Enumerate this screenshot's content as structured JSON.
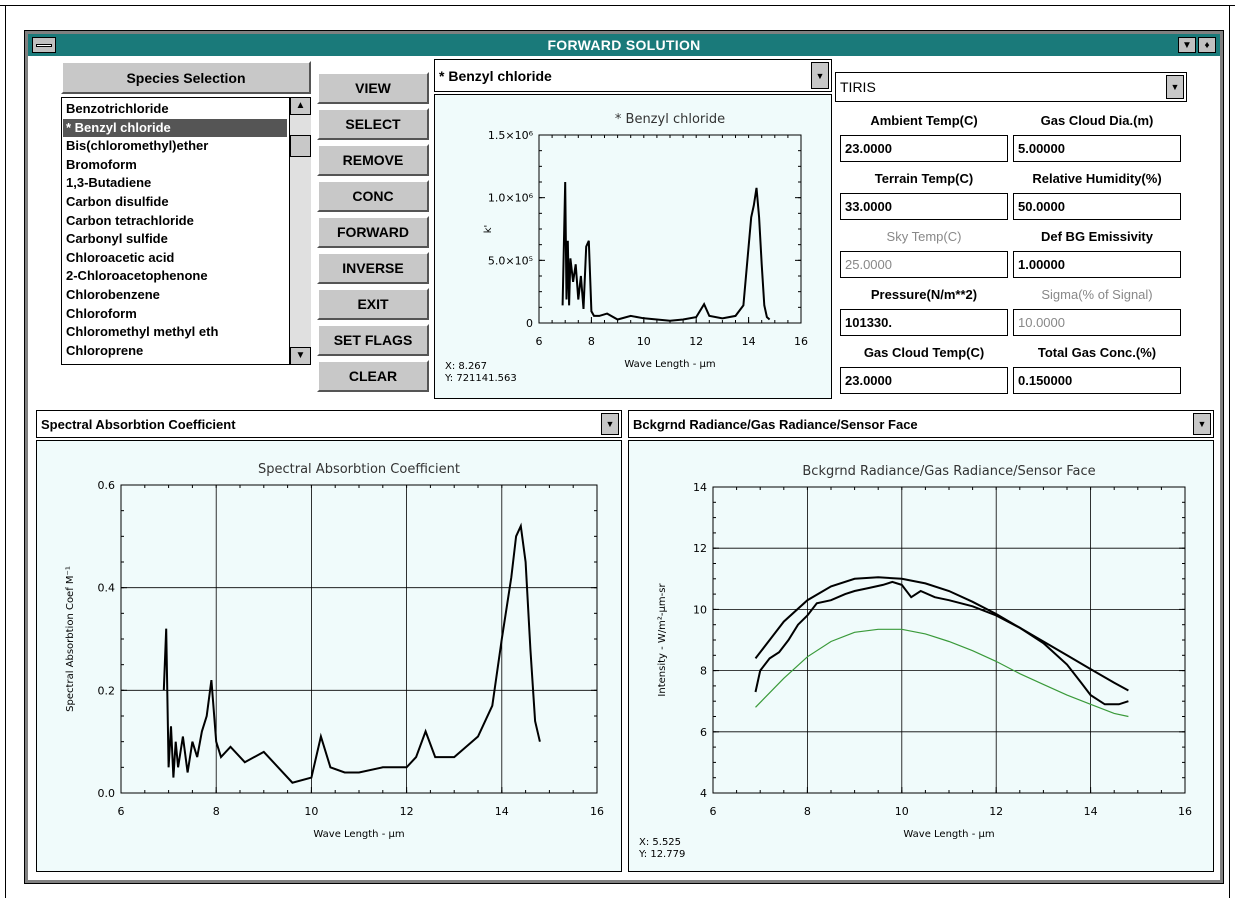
{
  "window": {
    "title": "FORWARD SOLUTION",
    "menu_arrows": "▼ ◆"
  },
  "species": {
    "header": "Species Selection",
    "items": [
      "Benzotrichloride",
      "* Benzyl chloride",
      "Bis(chloromethyl)ether",
      "Bromoform",
      "1,3-Butadiene",
      "Carbon disulfide",
      "Carbon tetrachloride",
      "Carbonyl sulfide",
      "Chloroacetic acid",
      "2-Chloroacetophenone",
      "Chlorobenzene",
      "Chloroform",
      "Chloromethyl methyl eth",
      "Chloroprene"
    ],
    "selected_index": 1
  },
  "buttons": [
    "VIEW",
    "SELECT",
    "REMOVE",
    "CONC",
    "FORWARD",
    "INVERSE",
    "EXIT",
    "SET FLAGS",
    "CLEAR"
  ],
  "preview": {
    "dropdown": "* Benzyl chloride",
    "title": "* Benzyl chloride",
    "ylabel": "k'",
    "xlabel": "Wave Length - μm",
    "cursor_x": "X:       8.267",
    "cursor_y": "Y: 721141.563",
    "yticks": [
      "1.5×10⁶",
      "1.0×10⁶",
      "5.0×10⁵",
      "0"
    ],
    "xticks": [
      "6",
      "8",
      "10",
      "12",
      "14",
      "16"
    ]
  },
  "sensor": {
    "dropdown": "TIRIS",
    "params": [
      {
        "label": "Ambient Temp(C)",
        "value": "23.0000",
        "enabled": true
      },
      {
        "label": "Gas Cloud Dia.(m)",
        "value": "5.00000",
        "enabled": true
      },
      {
        "label": "Terrain Temp(C)",
        "value": "33.0000",
        "enabled": true
      },
      {
        "label": "Relative Humidity(%)",
        "value": "50.0000",
        "enabled": true
      },
      {
        "label": "Sky Temp(C)",
        "value": "25.0000",
        "enabled": false
      },
      {
        "label": "Def BG Emissivity",
        "value": "1.00000",
        "enabled": true
      },
      {
        "label": "Pressure(N/m**2)",
        "value": "101330.",
        "enabled": true
      },
      {
        "label": "Sigma(% of Signal)",
        "value": "10.0000",
        "enabled": false
      },
      {
        "label": "Gas Cloud Temp(C)",
        "value": "23.0000",
        "enabled": true
      },
      {
        "label": "Total Gas Conc.(%)",
        "value": "0.150000",
        "enabled": true
      }
    ]
  },
  "absorption": {
    "dropdown": "Spectral Absorbtion Coefficient",
    "title": "Spectral Absorbtion Coefficient",
    "ylabel": "Spectral Absorbtion Coef M⁻¹",
    "xlabel": "Wave Length - μm",
    "yticks": [
      "0.6",
      "0.4",
      "0.2",
      "0.0"
    ],
    "xticks": [
      "6",
      "8",
      "10",
      "12",
      "14",
      "16"
    ]
  },
  "radiance": {
    "dropdown": "Bckgrnd Radiance/Gas Radiance/Sensor Face",
    "title": "Bckgrnd Radiance/Gas Radiance/Sensor Face",
    "ylabel": "Intensity - W/m²-μm-sr",
    "xlabel": "Wave Length - μm",
    "cursor_x": "X:       5.525",
    "cursor_y": "Y:      12.779",
    "yticks": [
      "14",
      "12",
      "10",
      "8",
      "6",
      "4"
    ],
    "xticks": [
      "6",
      "8",
      "10",
      "12",
      "14",
      "16"
    ]
  },
  "chart_data": [
    {
      "type": "line",
      "title": "* Benzyl chloride",
      "xlabel": "Wave Length - μm",
      "ylabel": "k'",
      "xlim": [
        6,
        16
      ],
      "ylim": [
        0,
        1600000
      ],
      "grid": false,
      "series": [
        {
          "x": [
            6.9,
            7.0,
            7.05,
            7.1,
            7.15,
            7.2,
            7.3,
            7.4,
            7.5,
            7.6,
            7.7,
            7.8,
            7.9,
            8.0,
            8.1,
            8.3,
            8.6,
            9.0,
            9.5,
            10.0,
            10.5,
            11.0,
            11.5,
            12.0,
            12.3,
            12.5,
            13.0,
            13.5,
            13.8,
            14.0,
            14.1,
            14.2,
            14.3,
            14.4,
            14.5,
            14.6,
            14.7,
            14.8
          ],
          "values": [
            150000,
            1200000,
            200000,
            700000,
            150000,
            550000,
            350000,
            500000,
            200000,
            400000,
            120000,
            650000,
            700000,
            100000,
            60000,
            60000,
            80000,
            30000,
            60000,
            40000,
            30000,
            20000,
            30000,
            50000,
            160000,
            60000,
            40000,
            60000,
            150000,
            650000,
            900000,
            1000000,
            1150000,
            900000,
            500000,
            150000,
            50000,
            30000
          ]
        }
      ]
    },
    {
      "type": "line",
      "title": "Spectral Absorbtion Coefficient",
      "xlabel": "Wave Length - μm",
      "ylabel": "Spectral Absorbtion Coef M⁻¹",
      "xlim": [
        6,
        16
      ],
      "ylim": [
        0,
        0.6
      ],
      "grid": true,
      "series": [
        {
          "x": [
            6.9,
            6.95,
            7.0,
            7.05,
            7.1,
            7.15,
            7.2,
            7.3,
            7.4,
            7.5,
            7.6,
            7.7,
            7.8,
            7.9,
            8.0,
            8.1,
            8.3,
            8.6,
            9.0,
            9.3,
            9.6,
            10.0,
            10.2,
            10.4,
            10.7,
            11.0,
            11.5,
            12.0,
            12.2,
            12.4,
            12.6,
            13.0,
            13.5,
            13.8,
            14.0,
            14.2,
            14.3,
            14.4,
            14.5,
            14.6,
            14.7,
            14.8
          ],
          "values": [
            0.2,
            0.32,
            0.05,
            0.13,
            0.03,
            0.1,
            0.05,
            0.11,
            0.04,
            0.1,
            0.07,
            0.12,
            0.15,
            0.22,
            0.1,
            0.07,
            0.09,
            0.06,
            0.08,
            0.05,
            0.02,
            0.03,
            0.11,
            0.05,
            0.04,
            0.04,
            0.05,
            0.05,
            0.07,
            0.12,
            0.07,
            0.07,
            0.11,
            0.17,
            0.3,
            0.42,
            0.5,
            0.52,
            0.45,
            0.28,
            0.14,
            0.1
          ]
        }
      ]
    },
    {
      "type": "line",
      "title": "Bckgrnd Radiance/Gas Radiance/Sensor Face",
      "xlabel": "Wave Length - μm",
      "ylabel": "Intensity - W/m²-μm-sr",
      "xlim": [
        6,
        16
      ],
      "ylim": [
        4,
        14
      ],
      "grid": true,
      "series": [
        {
          "color": "#000000",
          "x": [
            6.9,
            7.5,
            8.0,
            8.5,
            9.0,
            9.5,
            10.0,
            10.5,
            11.0,
            11.5,
            12.0,
            12.5,
            13.0,
            13.5,
            14.0,
            14.5,
            14.8
          ],
          "values": [
            8.4,
            9.6,
            10.3,
            10.75,
            11.0,
            11.05,
            11.0,
            10.85,
            10.6,
            10.25,
            9.85,
            9.4,
            8.95,
            8.5,
            8.05,
            7.6,
            7.35
          ]
        },
        {
          "color": "#000000",
          "x": [
            6.9,
            7.0,
            7.2,
            7.4,
            7.6,
            7.8,
            8.0,
            8.2,
            8.5,
            8.8,
            9.0,
            9.3,
            9.6,
            9.8,
            10.0,
            10.2,
            10.4,
            10.7,
            11.0,
            11.5,
            12.0,
            12.5,
            13.0,
            13.5,
            13.8,
            14.0,
            14.3,
            14.6,
            14.8
          ],
          "values": [
            7.3,
            8.0,
            8.4,
            8.6,
            9.0,
            9.5,
            9.8,
            10.2,
            10.3,
            10.5,
            10.6,
            10.7,
            10.8,
            10.9,
            10.8,
            10.4,
            10.6,
            10.4,
            10.3,
            10.1,
            9.8,
            9.4,
            8.9,
            8.2,
            7.6,
            7.2,
            6.9,
            6.9,
            7.0
          ]
        },
        {
          "color": "#3a9a3a",
          "x": [
            6.9,
            7.5,
            8.0,
            8.5,
            9.0,
            9.5,
            10.0,
            10.5,
            11.0,
            11.5,
            12.0,
            12.5,
            13.0,
            13.5,
            14.0,
            14.5,
            14.8
          ],
          "values": [
            6.8,
            7.75,
            8.45,
            8.95,
            9.25,
            9.35,
            9.35,
            9.2,
            8.95,
            8.65,
            8.3,
            7.9,
            7.55,
            7.2,
            6.9,
            6.6,
            6.5
          ]
        }
      ]
    }
  ]
}
